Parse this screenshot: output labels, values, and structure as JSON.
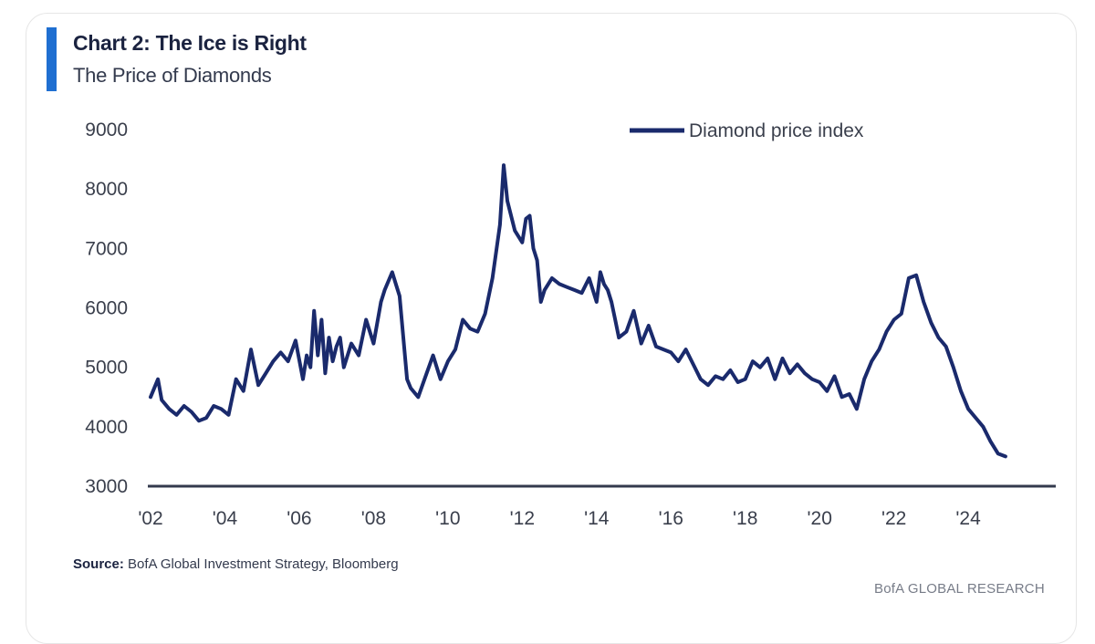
{
  "header": {
    "title": "Chart 2: The Ice is Right",
    "subtitle": "The Price of Diamonds"
  },
  "footer": {
    "source_label": "Source:",
    "source_text": " BofA Global Investment Strategy, Bloomberg",
    "brand": "BofA GLOBAL RESEARCH"
  },
  "colors": {
    "accent": "#1f6fd1",
    "series": "#1a2a6c",
    "axis": "#333a4d"
  },
  "chart_data": {
    "type": "line",
    "title": "Chart 2: The Ice is Right",
    "subtitle": "The Price of Diamonds",
    "xlabel": "",
    "ylabel": "",
    "xlim": [
      2002,
      2025.2
    ],
    "ylim": [
      3000,
      9000
    ],
    "yticks": [
      3000,
      4000,
      5000,
      6000,
      7000,
      8000,
      9000
    ],
    "xticks": [
      {
        "value": 2002,
        "label": "'02"
      },
      {
        "value": 2004,
        "label": "'04"
      },
      {
        "value": 2006,
        "label": "'06"
      },
      {
        "value": 2008,
        "label": "'08"
      },
      {
        "value": 2010,
        "label": "'10"
      },
      {
        "value": 2012,
        "label": "'12"
      },
      {
        "value": 2014,
        "label": "'14"
      },
      {
        "value": 2016,
        "label": "'16"
      },
      {
        "value": 2018,
        "label": "'18"
      },
      {
        "value": 2020,
        "label": "'20"
      },
      {
        "value": 2022,
        "label": "'22"
      },
      {
        "value": 2024,
        "label": "'24"
      }
    ],
    "grid": false,
    "legend_position": "top-right",
    "series": [
      {
        "name": "Diamond price index",
        "x": [
          2002.0,
          2002.2,
          2002.3,
          2002.5,
          2002.7,
          2002.9,
          2003.1,
          2003.3,
          2003.5,
          2003.7,
          2003.9,
          2004.1,
          2004.3,
          2004.5,
          2004.7,
          2004.9,
          2005.1,
          2005.3,
          2005.5,
          2005.7,
          2005.9,
          2006.1,
          2006.2,
          2006.3,
          2006.4,
          2006.5,
          2006.6,
          2006.7,
          2006.8,
          2006.9,
          2007.0,
          2007.1,
          2007.2,
          2007.4,
          2007.6,
          2007.8,
          2008.0,
          2008.2,
          2008.3,
          2008.5,
          2008.6,
          2008.7,
          2008.8,
          2008.9,
          2009.0,
          2009.2,
          2009.4,
          2009.6,
          2009.8,
          2010.0,
          2010.2,
          2010.4,
          2010.6,
          2010.8,
          2011.0,
          2011.2,
          2011.4,
          2011.5,
          2011.6,
          2011.8,
          2012.0,
          2012.1,
          2012.2,
          2012.3,
          2012.4,
          2012.5,
          2012.6,
          2012.8,
          2013.0,
          2013.2,
          2013.4,
          2013.6,
          2013.8,
          2014.0,
          2014.1,
          2014.2,
          2014.3,
          2014.4,
          2014.5,
          2014.6,
          2014.8,
          2015.0,
          2015.2,
          2015.4,
          2015.6,
          2015.8,
          2016.0,
          2016.2,
          2016.4,
          2016.6,
          2016.8,
          2017.0,
          2017.2,
          2017.4,
          2017.6,
          2017.8,
          2018.0,
          2018.2,
          2018.4,
          2018.6,
          2018.8,
          2019.0,
          2019.2,
          2019.4,
          2019.6,
          2019.8,
          2020.0,
          2020.2,
          2020.4,
          2020.6,
          2020.8,
          2021.0,
          2021.2,
          2021.4,
          2021.6,
          2021.8,
          2022.0,
          2022.2,
          2022.4,
          2022.6,
          2022.8,
          2023.0,
          2023.2,
          2023.4,
          2023.6,
          2023.8,
          2024.0,
          2024.2,
          2024.4,
          2024.6,
          2024.8,
          2025.0
        ],
        "values": [
          4500,
          4800,
          4450,
          4300,
          4200,
          4350,
          4250,
          4100,
          4150,
          4350,
          4300,
          4200,
          4800,
          4600,
          5300,
          4700,
          4900,
          5100,
          5250,
          5100,
          5450,
          4800,
          5200,
          5000,
          5950,
          5200,
          5800,
          4900,
          5500,
          5100,
          5350,
          5500,
          5000,
          5400,
          5200,
          5800,
          5400,
          6100,
          6300,
          6600,
          6400,
          6200,
          5500,
          4800,
          4650,
          4500,
          4850,
          5200,
          4800,
          5100,
          5300,
          5800,
          5650,
          5600,
          5900,
          6500,
          7400,
          8400,
          7800,
          7300,
          7100,
          7500,
          7550,
          7000,
          6800,
          6100,
          6300,
          6500,
          6400,
          6350,
          6300,
          6250,
          6500,
          6100,
          6600,
          6400,
          6300,
          6100,
          5800,
          5500,
          5600,
          5950,
          5400,
          5700,
          5350,
          5300,
          5250,
          5100,
          5300,
          5050,
          4800,
          4700,
          4850,
          4800,
          4950,
          4750,
          4800,
          5100,
          5000,
          5150,
          4800,
          5150,
          4900,
          5050,
          4900,
          4800,
          4750,
          4600,
          4850,
          4500,
          4550,
          4300,
          4800,
          5100,
          5300,
          5600,
          5800,
          5900,
          6500,
          6550,
          6100,
          5750,
          5500,
          5350,
          5000,
          4600,
          4300,
          4150,
          4000,
          3750,
          3550,
          3500
        ]
      }
    ]
  }
}
